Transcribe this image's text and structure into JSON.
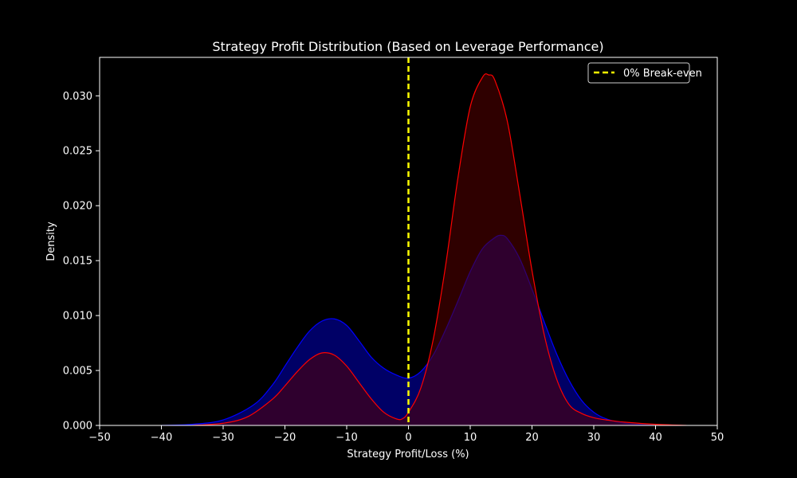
{
  "chart_data": {
    "type": "area",
    "title": "Strategy Profit Distribution (Based on Leverage Performance)",
    "xlabel": "Strategy Profit/Loss (%)",
    "ylabel": "Density",
    "xlim": [
      -50,
      50
    ],
    "ylim": [
      0,
      0.0335
    ],
    "xticks": [
      -50,
      -40,
      -30,
      -20,
      -10,
      0,
      10,
      20,
      30,
      40,
      50
    ],
    "xtick_labels": [
      "−50",
      "−40",
      "−30",
      "−20",
      "−10",
      "0",
      "10",
      "20",
      "30",
      "40",
      "50"
    ],
    "yticks": [
      0,
      0.005,
      0.01,
      0.015,
      0.02,
      0.025,
      0.03
    ],
    "ytick_labels": [
      "0.000",
      "0.005",
      "0.010",
      "0.015",
      "0.020",
      "0.025",
      "0.030"
    ],
    "grid": false,
    "legend_position": "top-right",
    "background": "#000000",
    "series": [
      {
        "color": "#0000ff",
        "fill": "#000066",
        "x": [
          -40,
          -35,
          -30,
          -25,
          -22,
          -20,
          -18,
          -16,
          -14,
          -12,
          -10,
          -8,
          -6,
          -4,
          -2,
          0,
          2,
          4,
          6,
          8,
          10,
          12,
          14,
          15,
          16,
          18,
          20,
          22,
          24,
          26,
          28,
          30,
          32,
          35,
          40
        ],
        "y": [
          0.0,
          0.0001,
          0.0005,
          0.0019,
          0.0037,
          0.0054,
          0.0071,
          0.0086,
          0.0095,
          0.0097,
          0.0091,
          0.0077,
          0.0062,
          0.0052,
          0.0046,
          0.0043,
          0.0049,
          0.0064,
          0.0087,
          0.0113,
          0.014,
          0.0161,
          0.0171,
          0.0173,
          0.017,
          0.0152,
          0.0124,
          0.0094,
          0.0065,
          0.0041,
          0.0023,
          0.0012,
          0.0006,
          0.0002,
          0.0
        ]
      },
      {
        "color": "#ff0000",
        "fill": "#550000",
        "x": [
          -35,
          -30,
          -26,
          -22,
          -20,
          -18,
          -16,
          -14,
          -12,
          -10,
          -8,
          -6,
          -4,
          -2,
          -1,
          0,
          2,
          4,
          6,
          8,
          10,
          12,
          13,
          14,
          16,
          18,
          20,
          22,
          24,
          26,
          28,
          30,
          32,
          35,
          40,
          45
        ],
        "y": [
          0.0,
          0.0002,
          0.0008,
          0.0024,
          0.0036,
          0.0049,
          0.006,
          0.0066,
          0.0064,
          0.0054,
          0.0039,
          0.0024,
          0.0012,
          0.0006,
          0.0006,
          0.0012,
          0.0034,
          0.0078,
          0.0145,
          0.0225,
          0.029,
          0.0317,
          0.0319,
          0.0314,
          0.0277,
          0.0211,
          0.0141,
          0.0082,
          0.0042,
          0.0019,
          0.0011,
          0.0007,
          0.0005,
          0.0003,
          0.0001,
          0.0
        ]
      }
    ],
    "vline": {
      "x": 0,
      "color": "#ffff00",
      "style": "dashed",
      "label": "0% Break-even"
    }
  }
}
